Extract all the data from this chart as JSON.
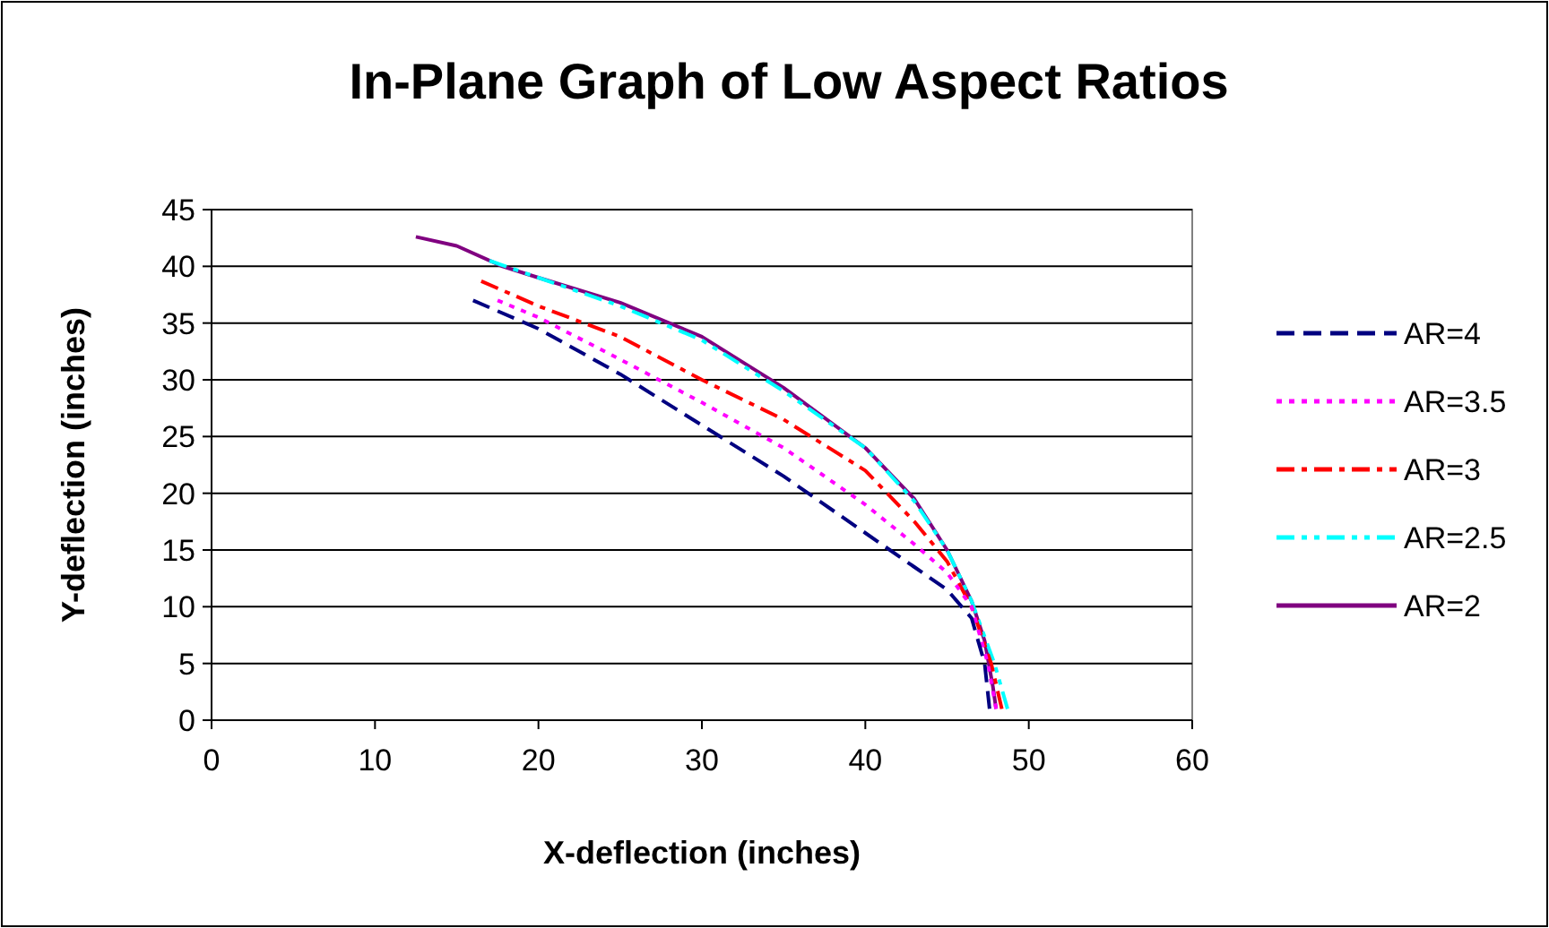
{
  "chart_data": {
    "type": "line",
    "title": "In-Plane Graph of Low Aspect Ratios",
    "xlabel": "X-deflection (inches)",
    "ylabel": "Y-deflection (inches)",
    "xlim": [
      0,
      60
    ],
    "xticks": [
      0,
      10,
      20,
      30,
      40,
      50,
      60
    ],
    "ylim": [
      0,
      45
    ],
    "yticks": [
      0,
      5,
      10,
      15,
      20,
      25,
      30,
      35,
      40,
      45
    ],
    "grid": "y",
    "legend": "right",
    "series": [
      {
        "name": "AR=4",
        "color": "#000080",
        "line_style": "dashed",
        "x": [
          16,
          20,
          25,
          30,
          35,
          40,
          43,
          45,
          46.5,
          47.3,
          47.6
        ],
        "values": [
          37,
          34.5,
          30.5,
          26,
          21.5,
          16.5,
          13.5,
          11.5,
          9,
          5,
          1
        ]
      },
      {
        "name": "AR=3.5",
        "color": "#ff00ff",
        "line_style": "dotted",
        "x": [
          17.5,
          20,
          25,
          30,
          35,
          40,
          43,
          45,
          46.5,
          47.5,
          48
        ],
        "values": [
          37,
          35.5,
          31.8,
          28,
          24,
          19,
          15.5,
          13,
          10,
          5,
          1
        ]
      },
      {
        "name": "AR=3",
        "color": "#ff0000",
        "line_style": "dashdot",
        "x": [
          16.5,
          20,
          25,
          30,
          35,
          40,
          43,
          45,
          46.5,
          47.7,
          48.35
        ],
        "values": [
          38.7,
          36.5,
          33.8,
          30,
          26.5,
          22,
          17.5,
          14,
          10,
          5,
          1
        ]
      },
      {
        "name": "AR=2.5",
        "color": "#00ffff",
        "line_style": "dashdotdot",
        "x": [
          17,
          20,
          25,
          30,
          35,
          40,
          43,
          45,
          46.5,
          47.9,
          48.7
        ],
        "values": [
          40.5,
          39,
          36.5,
          33.5,
          29,
          24,
          19.3,
          15,
          10.5,
          5,
          1
        ]
      },
      {
        "name": "AR=2",
        "color": "#800080",
        "line_style": "solid",
        "x": [
          12.5,
          15,
          17.8,
          20,
          25,
          30,
          35,
          40,
          43,
          45,
          46.5,
          47.3,
          47.8,
          48
        ],
        "values": [
          42.6,
          41.8,
          40,
          39,
          36.8,
          33.8,
          29.3,
          24,
          19.5,
          15,
          10.5,
          7,
          3,
          1
        ]
      }
    ]
  }
}
